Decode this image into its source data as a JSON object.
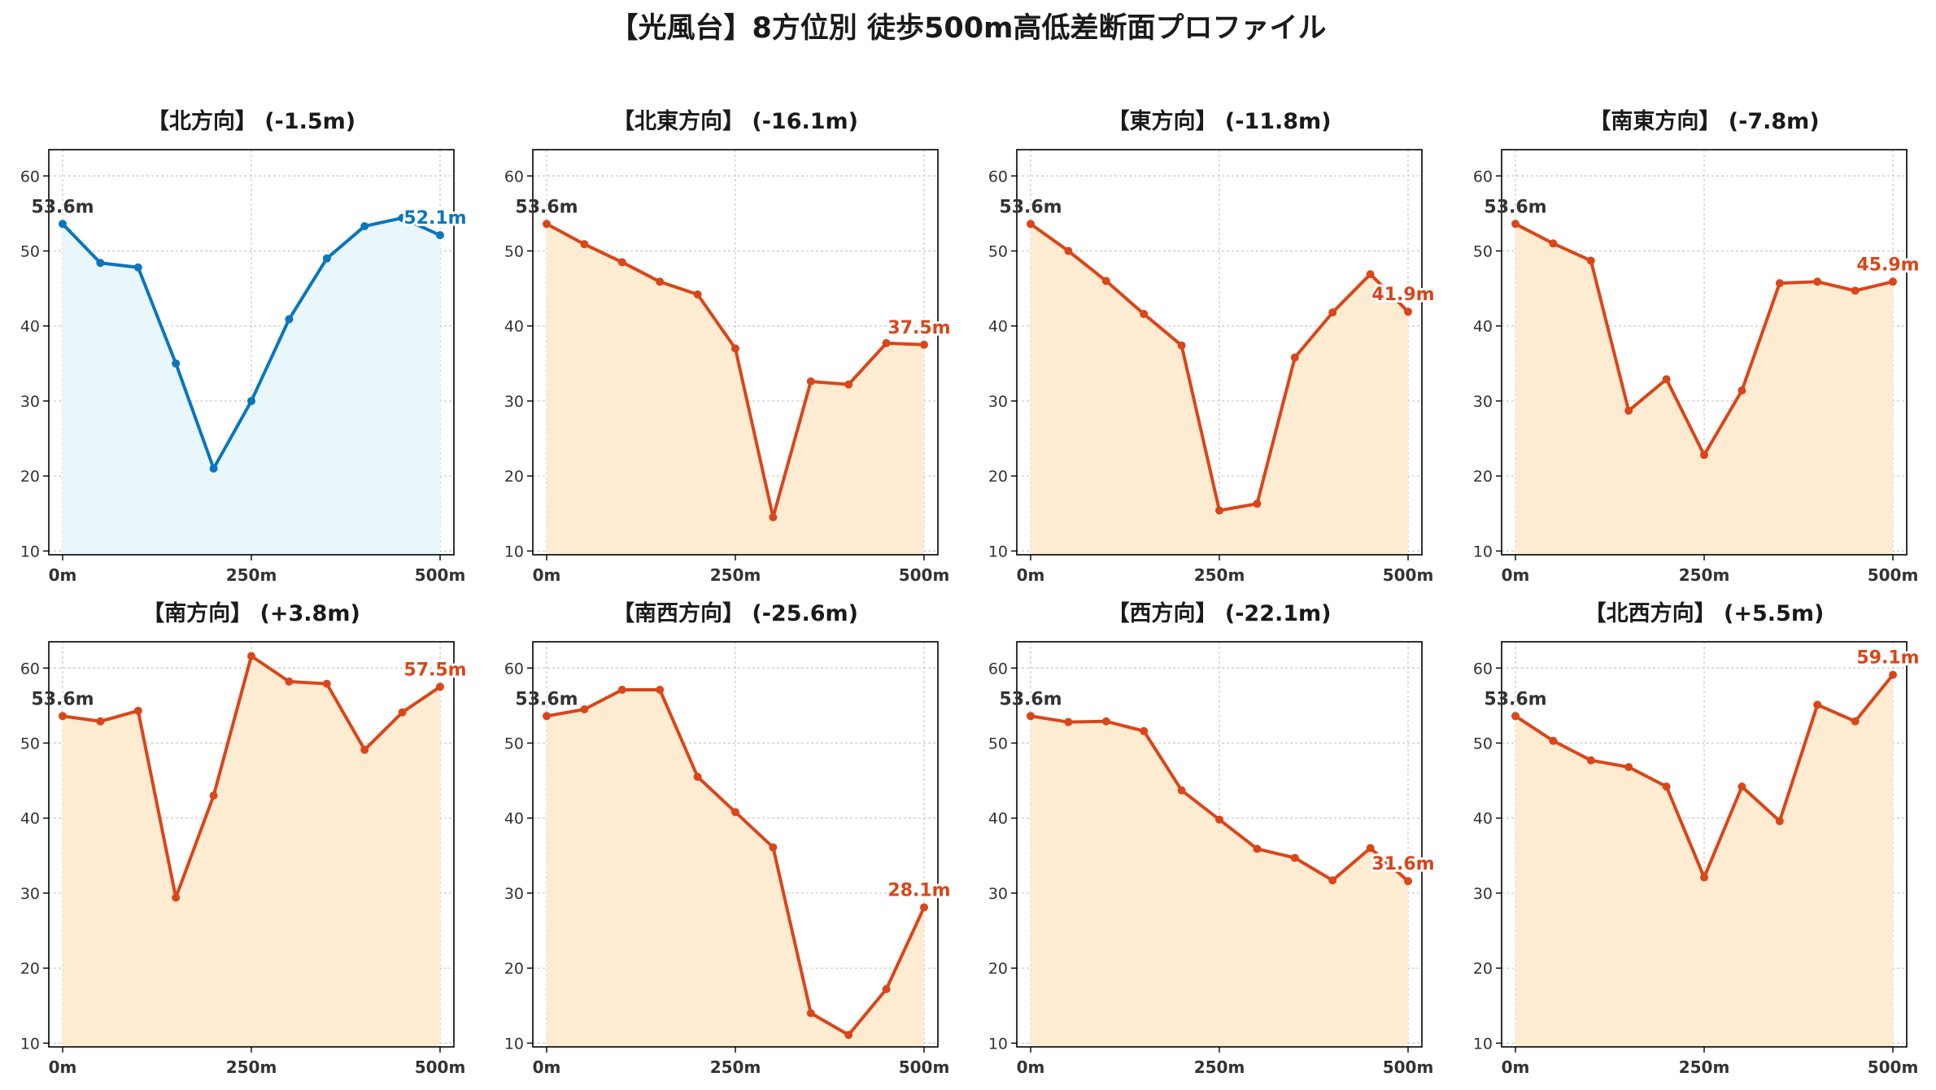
{
  "title": "【光風台】8方位別 徒歩500m高低差断面プロファイル",
  "colors": {
    "up": "#0a76bd",
    "up_fill": "#e9f6fc",
    "down": "#d9461a",
    "down_fill": "#fdebd2",
    "start_label": "#333333",
    "grid": "#c8c8c8"
  },
  "chart_data": [
    {
      "type": "area",
      "title": "【北方向】 (-1.5m)",
      "series_color": "blue",
      "x": [
        0,
        50,
        100,
        150,
        200,
        250,
        300,
        350,
        400,
        450,
        500
      ],
      "y": [
        53.6,
        48.4,
        47.8,
        35.0,
        21.0,
        30.0,
        40.9,
        49.0,
        53.3,
        54.4,
        52.1
      ],
      "start_label": "53.6m",
      "end_label": "52.1m",
      "ylim": [
        9.5,
        63.5
      ],
      "yticks": [
        10,
        20,
        30,
        40,
        50,
        60
      ],
      "xticks": [
        0,
        250,
        500
      ],
      "xtick_labels": [
        "0m",
        "250m",
        "500m"
      ],
      "grid": true
    },
    {
      "type": "area",
      "title": "【北東方向】 (-16.1m)",
      "series_color": "orange",
      "x": [
        0,
        50,
        100,
        150,
        200,
        250,
        300,
        350,
        400,
        450,
        500
      ],
      "y": [
        53.6,
        50.9,
        48.5,
        45.9,
        44.2,
        37.0,
        14.5,
        32.6,
        32.2,
        37.7,
        37.5
      ],
      "start_label": "53.6m",
      "end_label": "37.5m",
      "ylim": [
        9.5,
        63.5
      ],
      "yticks": [
        10,
        20,
        30,
        40,
        50,
        60
      ],
      "xticks": [
        0,
        250,
        500
      ],
      "xtick_labels": [
        "0m",
        "250m",
        "500m"
      ],
      "grid": true
    },
    {
      "type": "area",
      "title": "【東方向】 (-11.8m)",
      "series_color": "orange",
      "x": [
        0,
        50,
        100,
        150,
        200,
        250,
        300,
        350,
        400,
        450,
        500
      ],
      "y": [
        53.6,
        50.0,
        46.0,
        41.6,
        37.4,
        15.4,
        16.3,
        35.8,
        41.8,
        46.9,
        41.9
      ],
      "start_label": "53.6m",
      "end_label": "41.9m",
      "ylim": [
        9.5,
        63.5
      ],
      "yticks": [
        10,
        20,
        30,
        40,
        50,
        60
      ],
      "xticks": [
        0,
        250,
        500
      ],
      "xtick_labels": [
        "0m",
        "250m",
        "500m"
      ],
      "grid": true
    },
    {
      "type": "area",
      "title": "【南東方向】 (-7.8m)",
      "series_color": "orange",
      "x": [
        0,
        50,
        100,
        150,
        200,
        250,
        300,
        350,
        400,
        450,
        500
      ],
      "y": [
        53.6,
        51.0,
        48.7,
        28.7,
        32.9,
        22.8,
        31.4,
        45.7,
        45.9,
        44.7,
        45.9
      ],
      "start_label": "53.6m",
      "end_label": "45.9m",
      "ylim": [
        9.5,
        63.5
      ],
      "yticks": [
        10,
        20,
        30,
        40,
        50,
        60
      ],
      "xticks": [
        0,
        250,
        500
      ],
      "xtick_labels": [
        "0m",
        "250m",
        "500m"
      ],
      "grid": true
    },
    {
      "type": "area",
      "title": "【南方向】 (+3.8m)",
      "series_color": "orange",
      "x": [
        0,
        50,
        100,
        150,
        200,
        250,
        300,
        350,
        400,
        450,
        500
      ],
      "y": [
        53.6,
        52.9,
        54.3,
        29.4,
        43.0,
        61.6,
        58.2,
        57.9,
        49.1,
        54.1,
        57.5
      ],
      "start_label": "53.6m",
      "end_label": "57.5m",
      "ylim": [
        9.5,
        63.5
      ],
      "yticks": [
        10,
        20,
        30,
        40,
        50,
        60
      ],
      "xticks": [
        0,
        250,
        500
      ],
      "xtick_labels": [
        "0m",
        "250m",
        "500m"
      ],
      "grid": true
    },
    {
      "type": "area",
      "title": "【南西方向】 (-25.6m)",
      "series_color": "orange",
      "x": [
        0,
        50,
        100,
        150,
        200,
        250,
        300,
        350,
        400,
        450,
        500
      ],
      "y": [
        53.6,
        54.5,
        57.1,
        57.1,
        45.5,
        40.8,
        36.1,
        14.0,
        11.1,
        17.2,
        28.1
      ],
      "start_label": "53.6m",
      "end_label": "28.1m",
      "ylim": [
        9.5,
        63.5
      ],
      "yticks": [
        10,
        20,
        30,
        40,
        50,
        60
      ],
      "xticks": [
        0,
        250,
        500
      ],
      "xtick_labels": [
        "0m",
        "250m",
        "500m"
      ],
      "grid": true
    },
    {
      "type": "area",
      "title": "【西方向】 (-22.1m)",
      "series_color": "orange",
      "x": [
        0,
        50,
        100,
        150,
        200,
        250,
        300,
        350,
        400,
        450,
        500
      ],
      "y": [
        53.6,
        52.8,
        52.9,
        51.6,
        43.7,
        39.8,
        35.9,
        34.7,
        31.7,
        36.0,
        31.6
      ],
      "start_label": "53.6m",
      "end_label": "31.6m",
      "ylim": [
        9.5,
        63.5
      ],
      "yticks": [
        10,
        20,
        30,
        40,
        50,
        60
      ],
      "xticks": [
        0,
        250,
        500
      ],
      "xtick_labels": [
        "0m",
        "250m",
        "500m"
      ],
      "grid": true
    },
    {
      "type": "area",
      "title": "【北西方向】 (+5.5m)",
      "series_color": "orange",
      "x": [
        0,
        50,
        100,
        150,
        200,
        250,
        300,
        350,
        400,
        450,
        500
      ],
      "y": [
        53.6,
        50.3,
        47.7,
        46.8,
        44.2,
        32.1,
        44.2,
        39.6,
        55.1,
        52.9,
        59.1
      ],
      "start_label": "53.6m",
      "end_label": "59.1m",
      "ylim": [
        9.5,
        63.5
      ],
      "yticks": [
        10,
        20,
        30,
        40,
        50,
        60
      ],
      "xticks": [
        0,
        250,
        500
      ],
      "xtick_labels": [
        "0m",
        "250m",
        "500m"
      ],
      "grid": true
    }
  ]
}
